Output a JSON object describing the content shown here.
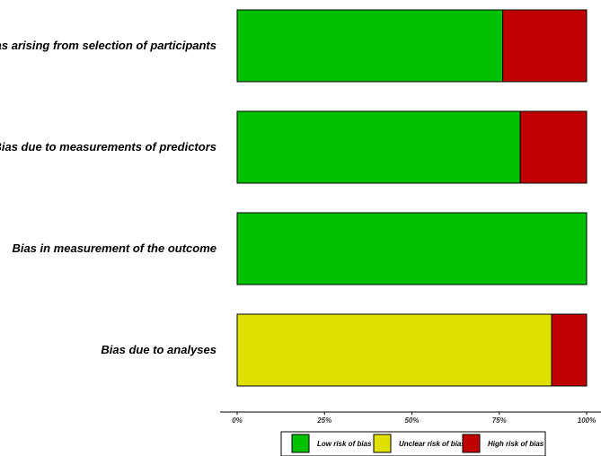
{
  "chart_data": {
    "type": "bar",
    "orientation": "horizontal",
    "stacked": true,
    "percent": true,
    "categories": [
      "Bias arising from selection of participants",
      "Bias due to measurements of predictors",
      "Bias in measurement of the outcome",
      "Bias due to analyses"
    ],
    "series": [
      {
        "name": "Low risk of bias",
        "color": "#00c000",
        "values": [
          76,
          81,
          100,
          0
        ]
      },
      {
        "name": "Unclear risk of bias",
        "color": "#e0e000",
        "values": [
          0,
          0,
          0,
          90
        ]
      },
      {
        "name": "High risk of bias",
        "color": "#c00000",
        "values": [
          24,
          19,
          0,
          10
        ]
      }
    ],
    "x_ticks": [
      "0%",
      "25%",
      "50%",
      "75%",
      "100%"
    ],
    "xlim": [
      0,
      100
    ],
    "grid": false,
    "legend": "bottom"
  }
}
